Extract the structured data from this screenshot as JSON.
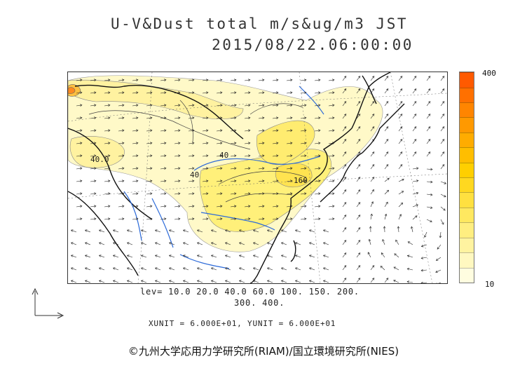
{
  "title": {
    "line1": "U-V&Dust total m/s&ug/m3 JST",
    "line2": "2015/08/22.06:00:00"
  },
  "map": {
    "contour_labels": [
      "40.0",
      "40",
      "40",
      "160"
    ]
  },
  "colorbar": {
    "max_label": "400",
    "min_label": "10",
    "colors_bottom_to_top": [
      "#fffde0",
      "#fff8c0",
      "#fff3a0",
      "#ffee80",
      "#ffe860",
      "#ffe040",
      "#ffd820",
      "#ffcf00",
      "#ffbe00",
      "#ffac00",
      "#ff9900",
      "#ff8500",
      "#ff7000",
      "#ff5a00"
    ]
  },
  "levels": {
    "line1": "lev= 10.0 20.0 40.0 60.0 100. 150. 200.",
    "line2": "300. 400."
  },
  "units_line": "XUNIT = 6.000E+01, YUNIT = 6.000E+01",
  "copyright": "©九州大学応用力学研究所(RIAM)/国立環境研究所(NIES)"
}
